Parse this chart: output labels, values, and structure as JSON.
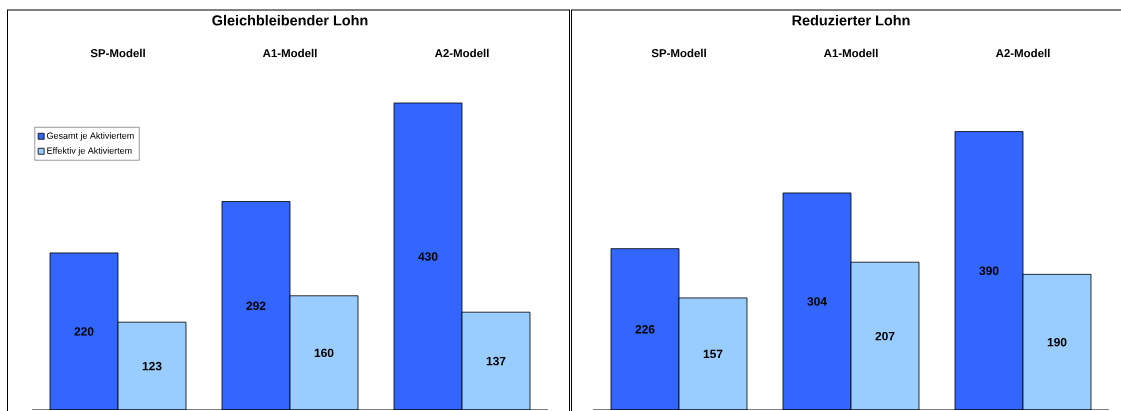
{
  "chart_data": [
    {
      "type": "bar",
      "title": "Gleichbleibender Lohn",
      "categories": [
        "SP-Modell",
        "A1-Modell",
        "A2-Modell"
      ],
      "data_labels": true,
      "legend": "top left",
      "series": [
        {
          "name": "Gesamt je Aktiviertem",
          "color": "#3366ff",
          "values": [
            220,
            292,
            430
          ]
        },
        {
          "name": "Effektiv je Aktiviertem",
          "color": "#99ccff",
          "values": [
            123,
            160,
            137
          ]
        }
      ]
    },
    {
      "type": "bar",
      "title": "Reduzierter Lohn",
      "categories": [
        "SP-Modell",
        "A1-Modell",
        "A2-Modell"
      ],
      "data_labels": true,
      "series": [
        {
          "color": "#3366ff",
          "values": [
            226,
            304,
            390
          ]
        },
        {
          "color": "#99ccff",
          "values": [
            157,
            207,
            190
          ]
        }
      ]
    }
  ]
}
